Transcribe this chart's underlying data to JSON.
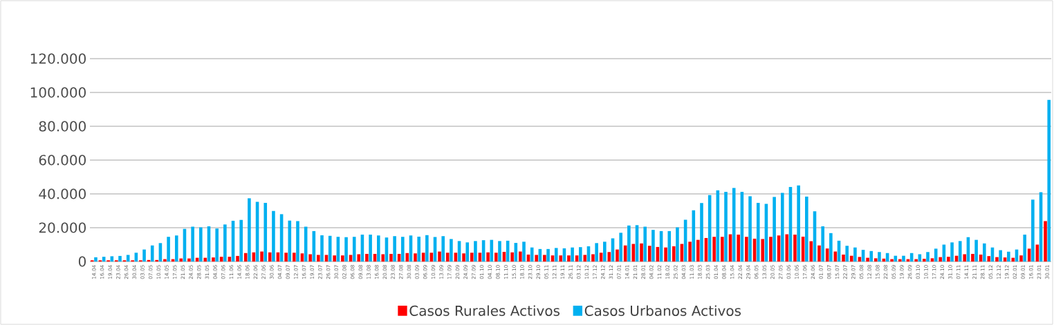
{
  "chart_data": {
    "type": "bar",
    "categories": [
      "14.04",
      "16.04",
      "19.04",
      "23.04",
      "26.04",
      "30.04",
      "03.05",
      "07.05",
      "10.05",
      "14.05",
      "17.05",
      "21.05",
      "24.05",
      "28.05",
      "31.05",
      "04.06",
      "07.06",
      "11.06",
      "14.06",
      "18.06",
      "22.06",
      "27.06",
      "30.06",
      "04.07",
      "09.07",
      "12.07",
      "16.07",
      "19.07",
      "23.07",
      "26.07",
      "30.07",
      "02.08",
      "06.08",
      "09.08",
      "13.08",
      "16.08",
      "20.08",
      "23.08",
      "27.08",
      "30.08",
      "03.09",
      "06.09",
      "10.09",
      "13.09",
      "17.09",
      "20.09",
      "24.09",
      "27.09",
      "01.10",
      "04.10",
      "08.10",
      "11.10",
      "15.10",
      "18.10",
      "23.10",
      "29.10",
      "05.11",
      "12.11",
      "19.11",
      "26.11",
      "03.12",
      "10.12",
      "17.12",
      "24.12",
      "31.12",
      "07.01",
      "14.01",
      "21.01",
      "28.01",
      "04.02",
      "11.02",
      "18.02",
      "25.02",
      "04.03",
      "11.03",
      "18.03",
      "25.03",
      "01.04",
      "08.04",
      "15.04",
      "22.04",
      "29.04",
      "06.05",
      "13.05",
      "20.05",
      "27.05",
      "03.06",
      "10.06",
      "17.06",
      "24.06",
      "01.07",
      "08.07",
      "15.07",
      "22.07",
      "29.07",
      "05.08",
      "12.08",
      "15.08",
      "22.08",
      "05.09",
      "19.09",
      "26.09",
      "03.10",
      "10.10",
      "17.10",
      "24.10",
      "31.10",
      "07.11",
      "14.11",
      "21.11",
      "28.11",
      "05.12",
      "12.12",
      "19.12",
      "02.01",
      "09.01",
      "16.01",
      "23.01",
      "30.01"
    ],
    "series": [
      {
        "name": "Casos Rurales Activos",
        "color": "#ff0000",
        "values": [
          0.7,
          0.7,
          0.7,
          0.7,
          0.7,
          0.7,
          0.7,
          0.9,
          0.9,
          1.4,
          1.4,
          1.8,
          1.8,
          2.2,
          2.2,
          2.4,
          2.8,
          2.8,
          3.3,
          5.0,
          5.4,
          5.9,
          5.4,
          5.4,
          5.2,
          5.2,
          4.8,
          4.3,
          3.9,
          3.9,
          3.6,
          3.6,
          3.9,
          4.3,
          4.5,
          4.5,
          4.3,
          4.5,
          4.5,
          5.0,
          4.8,
          5.2,
          5.2,
          5.9,
          5.2,
          5.2,
          4.8,
          5.2,
          5.2,
          5.4,
          5.2,
          5.7,
          5.4,
          5.9,
          4.1,
          3.9,
          3.9,
          3.6,
          3.6,
          3.6,
          3.6,
          3.9,
          4.3,
          5.2,
          5.6,
          7.1,
          9.5,
          10.4,
          10.7,
          9.3,
          8.6,
          8.3,
          9.0,
          10.4,
          11.7,
          12.8,
          13.9,
          14.6,
          14.6,
          16.1,
          15.9,
          14.6,
          13.5,
          13.3,
          14.6,
          15.4,
          16.1,
          15.9,
          14.7,
          12.0,
          9.5,
          7.7,
          5.9,
          4.1,
          3.4,
          2.7,
          2.2,
          1.9,
          1.7,
          1.4,
          1.4,
          1.4,
          1.4,
          1.6,
          1.9,
          2.6,
          2.8,
          3.4,
          4.3,
          4.5,
          4.1,
          3.2,
          2.6,
          2.4,
          2.2,
          3.6,
          7.6,
          10.0,
          23.9
        ]
      },
      {
        "name": "Casos Urbanos Activos",
        "color": "#00b0f0",
        "values": [
          2.5,
          2.8,
          3.1,
          3.3,
          3.9,
          5.2,
          7.1,
          9.5,
          10.9,
          14.6,
          15.4,
          19.3,
          20.6,
          20.2,
          20.8,
          19.5,
          21.9,
          24.1,
          24.6,
          37.4,
          35.3,
          34.7,
          29.9,
          28.0,
          24.2,
          23.9,
          20.6,
          18.0,
          15.5,
          15.2,
          14.6,
          14.4,
          14.6,
          15.9,
          15.9,
          15.4,
          14.2,
          15.0,
          14.6,
          15.4,
          14.7,
          15.6,
          14.5,
          15.0,
          13.3,
          12.1,
          11.3,
          12.1,
          12.6,
          12.8,
          12.1,
          12.3,
          11.0,
          11.7,
          8.3,
          7.4,
          7.4,
          8.0,
          7.8,
          8.3,
          8.5,
          9.0,
          10.9,
          11.7,
          13.7,
          17.0,
          21.3,
          21.5,
          20.6,
          18.7,
          18.0,
          18.0,
          20.2,
          24.7,
          30.3,
          34.6,
          39.3,
          42.1,
          41.2,
          43.5,
          41.2,
          38.6,
          34.7,
          34.1,
          38.2,
          40.6,
          44.1,
          45.0,
          38.4,
          29.7,
          20.8,
          16.8,
          12.3,
          9.3,
          8.3,
          6.9,
          6.2,
          5.6,
          5.0,
          3.4,
          3.4,
          5.0,
          4.3,
          5.6,
          7.6,
          10.0,
          11.3,
          12.1,
          14.4,
          12.8,
          10.7,
          8.3,
          6.7,
          5.8,
          7.1,
          15.9,
          36.6,
          41.0,
          95.6
        ]
      }
    ],
    "ylim": [
      0,
      120
    ],
    "yticks": [
      0,
      {
        "value": 20,
        "label": "20.000"
      },
      {
        "value": 40,
        "label": "40.000"
      },
      {
        "value": 60,
        "label": "60.000"
      },
      {
        "value": 80,
        "label": "80.000"
      },
      {
        "value": 100,
        "label": "100.000"
      },
      {
        "value": 120,
        "label": "120.000"
      }
    ],
    "grid": "y",
    "legend": "bottom"
  }
}
